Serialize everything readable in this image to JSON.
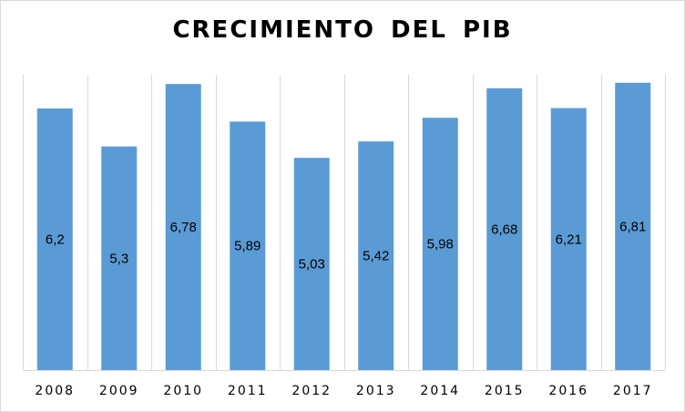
{
  "chart_data": {
    "type": "bar",
    "title": "CRECIMIENTO  DEL PIB",
    "categories": [
      "2008",
      "2009",
      "2010",
      "2011",
      "2012",
      "2013",
      "2014",
      "2015",
      "2016",
      "2017"
    ],
    "values": [
      6.2,
      5.3,
      6.78,
      5.89,
      5.03,
      5.42,
      5.98,
      6.68,
      6.21,
      6.81
    ],
    "value_labels": [
      "6,2",
      "5,3",
      "6,78",
      "5,89",
      "5,03",
      "5,42",
      "5,98",
      "6,68",
      "6,21",
      "6,81"
    ],
    "xlabel": "",
    "ylabel": "",
    "ylim": [
      0,
      7
    ],
    "grid": "vertical",
    "legend": "none",
    "bar_color": "#5b9bd5",
    "grid_color": "#d9d9d9"
  }
}
